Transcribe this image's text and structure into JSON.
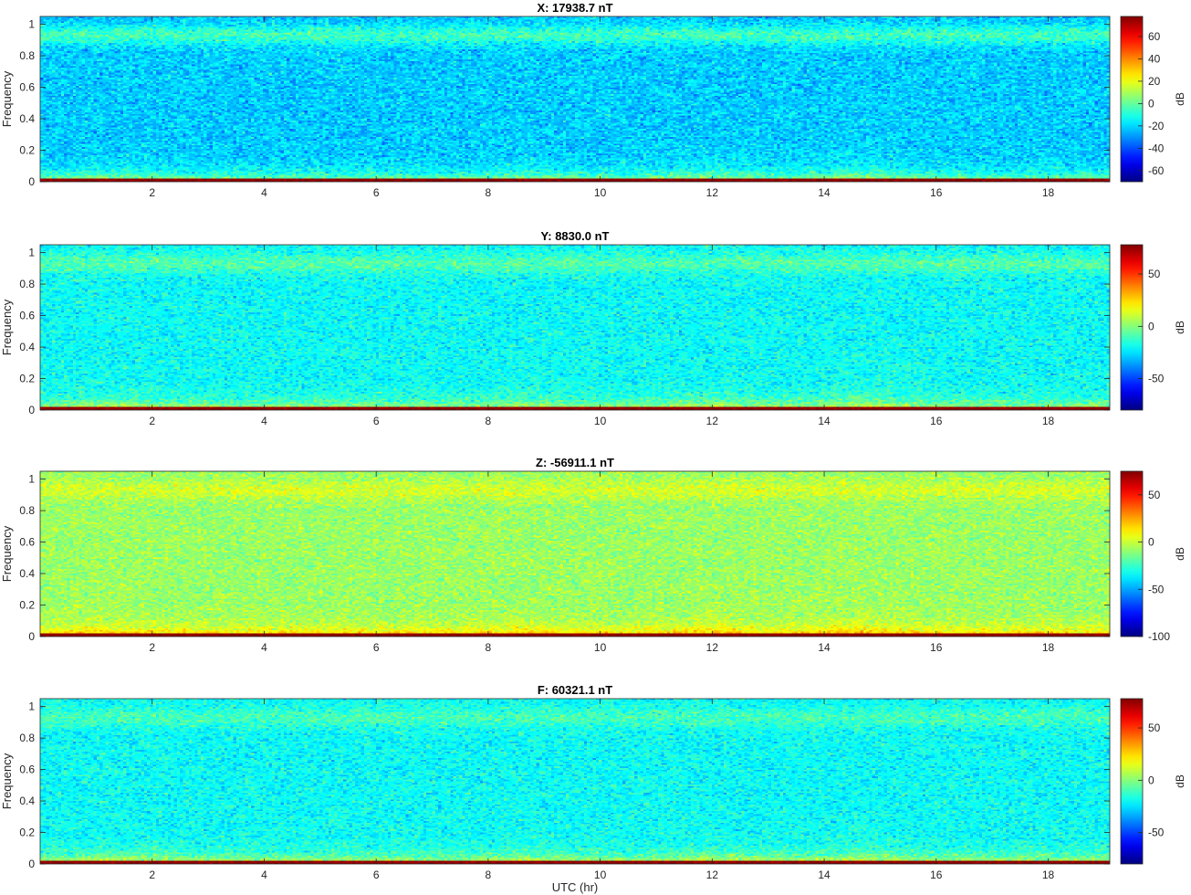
{
  "chart_data": [
    {
      "type": "heatmap",
      "title": "X: 17938.7 nT",
      "xlabel": "",
      "ylabel": "Frequency",
      "xlim": [
        0,
        19.1
      ],
      "ylim": [
        0,
        1.05
      ],
      "x_ticks": [
        2,
        4,
        6,
        8,
        10,
        12,
        14,
        16,
        18
      ],
      "y_ticks": [
        0,
        0.2,
        0.4,
        0.6,
        0.8,
        1
      ],
      "colorbar": {
        "label": "dB",
        "clim": [
          -70,
          78
        ],
        "ticks": [
          -60,
          -40,
          -20,
          0,
          20,
          40,
          60
        ]
      },
      "colormap": "jet",
      "level_profile": {
        "base_db": -22,
        "high_freq_band_db": -5,
        "low_freq_band_db": 15,
        "dc_db": 75
      }
    },
    {
      "type": "heatmap",
      "title": "Y: 8830.0 nT",
      "xlabel": "",
      "ylabel": "Frequency",
      "xlim": [
        0,
        19.1
      ],
      "ylim": [
        0,
        1.05
      ],
      "x_ticks": [
        2,
        4,
        6,
        8,
        10,
        12,
        14,
        16,
        18
      ],
      "y_ticks": [
        0,
        0.2,
        0.4,
        0.6,
        0.8,
        1
      ],
      "colorbar": {
        "label": "dB",
        "clim": [
          -80,
          78
        ],
        "ticks": [
          -50,
          0,
          50
        ]
      },
      "colormap": "jet",
      "level_profile": {
        "base_db": -20,
        "high_freq_band_db": -8,
        "low_freq_band_db": 15,
        "dc_db": 75
      }
    },
    {
      "type": "heatmap",
      "title": "Z: -56911.1 nT",
      "xlabel": "",
      "ylabel": "Frequency",
      "xlim": [
        0,
        19.1
      ],
      "ylim": [
        0,
        1.05
      ],
      "x_ticks": [
        2,
        4,
        6,
        8,
        10,
        12,
        14,
        16,
        18
      ],
      "y_ticks": [
        0,
        0.2,
        0.4,
        0.6,
        0.8,
        1
      ],
      "colorbar": {
        "label": "dB",
        "clim": [
          -100,
          75
        ],
        "ticks": [
          -100,
          -50,
          0,
          50
        ]
      },
      "colormap": "jet",
      "level_profile": {
        "base_db": -8,
        "high_freq_band_db": 2,
        "low_freq_band_db": 28,
        "dc_db": 72
      }
    },
    {
      "type": "heatmap",
      "title": "F: 60321.1 nT",
      "xlabel": "UTC (hr)",
      "ylabel": "Frequency",
      "xlim": [
        0,
        19.1
      ],
      "ylim": [
        0,
        1.05
      ],
      "x_ticks": [
        2,
        4,
        6,
        8,
        10,
        12,
        14,
        16,
        18
      ],
      "y_ticks": [
        0,
        0.2,
        0.4,
        0.6,
        0.8,
        1
      ],
      "colorbar": {
        "label": "dB",
        "clim": [
          -80,
          78
        ],
        "ticks": [
          -50,
          0,
          50
        ]
      },
      "colormap": "jet",
      "level_profile": {
        "base_db": -20,
        "high_freq_band_db": -10,
        "low_freq_band_db": 18,
        "dc_db": 75
      }
    }
  ]
}
